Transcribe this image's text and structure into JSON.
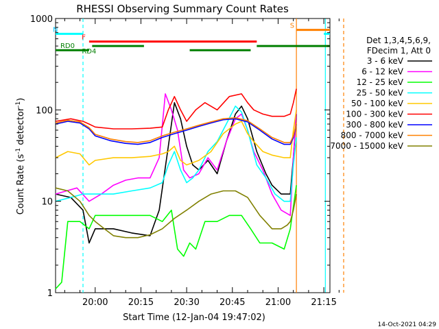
{
  "chart_data": {
    "type": "line",
    "title": "RHESSI Observing Summary Count Rates",
    "xlabel": "Start Time (12-Jan-04 19:47:02)",
    "ylabel_main": "Count Rate (s",
    "ylabel_sup1": "-1",
    "ylabel_mid": " detector",
    "ylabel_sup2": "-1",
    "ylabel_end": ")",
    "y_scale": "log",
    "ylim": [
      1,
      1000
    ],
    "y_ticks": [
      {
        "v": 1,
        "label": "1"
      },
      {
        "v": 10,
        "label": "10"
      },
      {
        "v": 100,
        "label": "100"
      },
      {
        "v": 1000,
        "label": "1000"
      }
    ],
    "xlim_min": [
      -13,
      72
    ],
    "x_ticks": [
      {
        "m": 0,
        "label": "20:00"
      },
      {
        "m": 15,
        "label": "20:15"
      },
      {
        "m": 30,
        "label": "20:30"
      },
      {
        "m": 45,
        "label": "20:45"
      },
      {
        "m": 60,
        "label": "21:00"
      },
      {
        "m": 75,
        "label": "21:15"
      }
    ],
    "legend_header": [
      "Det 1,3,4,5,6,9,",
      "FDecim 1, Att 0"
    ],
    "series": [
      {
        "name": "3 - 6 keV",
        "color": "#000000",
        "points": [
          [
            -13,
            12
          ],
          [
            -8,
            11
          ],
          [
            -4,
            8
          ],
          [
            -2,
            3.5
          ],
          [
            0,
            5
          ],
          [
            6,
            5
          ],
          [
            12,
            4.5
          ],
          [
            18,
            4.2
          ],
          [
            21,
            8
          ],
          [
            24,
            40
          ],
          [
            26,
            120
          ],
          [
            28,
            80
          ],
          [
            30,
            40
          ],
          [
            32,
            25
          ],
          [
            34,
            22
          ],
          [
            37,
            28
          ],
          [
            40,
            20
          ],
          [
            43,
            45
          ],
          [
            46,
            90
          ],
          [
            48,
            110
          ],
          [
            50,
            80
          ],
          [
            53,
            35
          ],
          [
            56,
            20
          ],
          [
            58,
            15
          ],
          [
            61,
            12
          ],
          [
            64,
            12
          ],
          [
            65,
            30
          ],
          [
            66,
            90
          ]
        ]
      },
      {
        "name": "6 - 12 keV",
        "color": "#ff00ff",
        "points": [
          [
            -13,
            12
          ],
          [
            -6,
            14
          ],
          [
            -2,
            10
          ],
          [
            2,
            12
          ],
          [
            6,
            15
          ],
          [
            10,
            17
          ],
          [
            14,
            18
          ],
          [
            18,
            18
          ],
          [
            21,
            30
          ],
          [
            23,
            150
          ],
          [
            25,
            100
          ],
          [
            27,
            60
          ],
          [
            29,
            22
          ],
          [
            31,
            18
          ],
          [
            34,
            20
          ],
          [
            37,
            30
          ],
          [
            40,
            22
          ],
          [
            43,
            45
          ],
          [
            46,
            80
          ],
          [
            48,
            90
          ],
          [
            50,
            60
          ],
          [
            52,
            35
          ],
          [
            55,
            22
          ],
          [
            58,
            12
          ],
          [
            61,
            8
          ],
          [
            64,
            7
          ],
          [
            65,
            30
          ],
          [
            66,
            100
          ]
        ]
      },
      {
        "name": "12 - 25 keV",
        "color": "#00ff00",
        "points": [
          [
            -13,
            1.1
          ],
          [
            -11,
            1.3
          ],
          [
            -9,
            6
          ],
          [
            -5,
            6
          ],
          [
            -2,
            5
          ],
          [
            0,
            7
          ],
          [
            6,
            7
          ],
          [
            12,
            7
          ],
          [
            18,
            7
          ],
          [
            22,
            6
          ],
          [
            25,
            8
          ],
          [
            27,
            3
          ],
          [
            29,
            2.5
          ],
          [
            31,
            3.5
          ],
          [
            33,
            3
          ],
          [
            36,
            6
          ],
          [
            40,
            6
          ],
          [
            44,
            7
          ],
          [
            48,
            7
          ],
          [
            51,
            5
          ],
          [
            54,
            3.5
          ],
          [
            58,
            3.5
          ],
          [
            62,
            3
          ],
          [
            64,
            5
          ],
          [
            66,
            15
          ]
        ]
      },
      {
        "name": "25 - 50 keV",
        "color": "#00ffff",
        "points": [
          [
            -13,
            10
          ],
          [
            -8,
            11
          ],
          [
            -4,
            12
          ],
          [
            0,
            12
          ],
          [
            6,
            12
          ],
          [
            12,
            13
          ],
          [
            18,
            14
          ],
          [
            22,
            16
          ],
          [
            24,
            25
          ],
          [
            26,
            35
          ],
          [
            28,
            22
          ],
          [
            30,
            16
          ],
          [
            32,
            18
          ],
          [
            34,
            22
          ],
          [
            37,
            35
          ],
          [
            40,
            45
          ],
          [
            43,
            70
          ],
          [
            46,
            110
          ],
          [
            48,
            95
          ],
          [
            50,
            60
          ],
          [
            53,
            25
          ],
          [
            56,
            18
          ],
          [
            59,
            12
          ],
          [
            62,
            10
          ],
          [
            64,
            10
          ],
          [
            65,
            25
          ],
          [
            66,
            50
          ]
        ]
      },
      {
        "name": "50 - 100 keV",
        "color": "#ffc800",
        "points": [
          [
            -13,
            30
          ],
          [
            -9,
            35
          ],
          [
            -5,
            33
          ],
          [
            -2,
            25
          ],
          [
            0,
            28
          ],
          [
            6,
            30
          ],
          [
            12,
            30
          ],
          [
            18,
            31
          ],
          [
            22,
            33
          ],
          [
            24,
            35
          ],
          [
            26,
            40
          ],
          [
            28,
            28
          ],
          [
            30,
            25
          ],
          [
            34,
            28
          ],
          [
            38,
            35
          ],
          [
            42,
            55
          ],
          [
            46,
            70
          ],
          [
            48,
            75
          ],
          [
            50,
            55
          ],
          [
            52,
            45
          ],
          [
            55,
            35
          ],
          [
            58,
            32
          ],
          [
            62,
            30
          ],
          [
            64,
            30
          ],
          [
            65,
            60
          ],
          [
            66,
            100
          ]
        ]
      },
      {
        "name": "100 - 300 keV",
        "color": "#ff0000",
        "points": [
          [
            -13,
            75
          ],
          [
            -8,
            80
          ],
          [
            -4,
            75
          ],
          [
            -2,
            70
          ],
          [
            0,
            65
          ],
          [
            6,
            62
          ],
          [
            12,
            62
          ],
          [
            18,
            63
          ],
          [
            22,
            65
          ],
          [
            24,
            100
          ],
          [
            26,
            140
          ],
          [
            28,
            100
          ],
          [
            30,
            75
          ],
          [
            33,
            100
          ],
          [
            36,
            120
          ],
          [
            40,
            100
          ],
          [
            44,
            140
          ],
          [
            48,
            150
          ],
          [
            50,
            120
          ],
          [
            52,
            100
          ],
          [
            55,
            90
          ],
          [
            58,
            85
          ],
          [
            62,
            85
          ],
          [
            64,
            90
          ],
          [
            65,
            120
          ],
          [
            66,
            170
          ]
        ]
      },
      {
        "name": "300 - 800 keV",
        "color": "#0000ff",
        "points": [
          [
            -13,
            70
          ],
          [
            -9,
            75
          ],
          [
            -5,
            72
          ],
          [
            -2,
            62
          ],
          [
            0,
            52
          ],
          [
            5,
            46
          ],
          [
            10,
            43
          ],
          [
            14,
            42
          ],
          [
            18,
            44
          ],
          [
            22,
            50
          ],
          [
            26,
            55
          ],
          [
            30,
            60
          ],
          [
            34,
            66
          ],
          [
            38,
            72
          ],
          [
            42,
            78
          ],
          [
            46,
            80
          ],
          [
            50,
            74
          ],
          [
            54,
            60
          ],
          [
            58,
            48
          ],
          [
            62,
            42
          ],
          [
            64,
            42
          ],
          [
            65,
            50
          ],
          [
            66,
            70
          ]
        ]
      },
      {
        "name": "800 - 7000 keV",
        "color": "#ff8000",
        "points": [
          [
            -13,
            72
          ],
          [
            -9,
            77
          ],
          [
            -5,
            74
          ],
          [
            -2,
            64
          ],
          [
            0,
            54
          ],
          [
            5,
            48
          ],
          [
            10,
            45
          ],
          [
            14,
            44
          ],
          [
            18,
            46
          ],
          [
            22,
            52
          ],
          [
            26,
            57
          ],
          [
            30,
            62
          ],
          [
            34,
            68
          ],
          [
            38,
            74
          ],
          [
            42,
            80
          ],
          [
            46,
            82
          ],
          [
            50,
            76
          ],
          [
            54,
            62
          ],
          [
            58,
            50
          ],
          [
            62,
            44
          ],
          [
            64,
            44
          ],
          [
            65,
            52
          ],
          [
            66,
            72
          ]
        ]
      },
      {
        "name": "7000 - 15000 keV",
        "color": "#808000",
        "points": [
          [
            -13,
            14
          ],
          [
            -9,
            13
          ],
          [
            -5,
            10
          ],
          [
            -2,
            7
          ],
          [
            0,
            6
          ],
          [
            3,
            5
          ],
          [
            6,
            4.2
          ],
          [
            10,
            4
          ],
          [
            14,
            4
          ],
          [
            18,
            4.3
          ],
          [
            22,
            5
          ],
          [
            26,
            6.5
          ],
          [
            30,
            8
          ],
          [
            34,
            10
          ],
          [
            38,
            12
          ],
          [
            42,
            13
          ],
          [
            46,
            13
          ],
          [
            50,
            11
          ],
          [
            54,
            7
          ],
          [
            58,
            5
          ],
          [
            61,
            5
          ],
          [
            63,
            5.5
          ],
          [
            64,
            6
          ],
          [
            65,
            8
          ],
          [
            66,
            12
          ]
        ]
      }
    ],
    "state_bars": [
      {
        "label": "N",
        "color": "#00ffff",
        "label_color": "#00c8ff",
        "segments": [
          [
            -13,
            -4
          ],
          [
            75,
            82
          ]
        ],
        "level": 680
      },
      {
        "label": "F",
        "color": "#ff0000",
        "label_color": "#ff0000",
        "segments": [
          [
            -2,
            53
          ]
        ],
        "level": 560
      },
      {
        "label": "RD0",
        "color": "#007f00",
        "label_color": "#007f00",
        "segments": [
          [
            -13,
            -2
          ],
          [
            31,
            51
          ]
        ],
        "level": 450
      },
      {
        "label": "RD4",
        "color": "#007f00",
        "label_color": "#007f00",
        "segments": [
          [
            -1,
            16
          ],
          [
            53,
            82
          ]
        ],
        "level": 500
      },
      {
        "label": "S",
        "color": "#ff8000",
        "label_color": "#ff8000",
        "segments": [
          [
            66,
            82
          ]
        ],
        "level": 750
      }
    ],
    "vlines": [
      {
        "m": -4,
        "color": "#00ffff",
        "dash": true
      },
      {
        "m": 66,
        "color": "#ff8000",
        "dash": false
      },
      {
        "m": 75.5,
        "color": "#00ffff",
        "dash": false
      },
      {
        "m": 81.5,
        "color": "#ff8000",
        "dash": true
      }
    ],
    "grid": false,
    "legend_placement": "right",
    "timestamp": "14-Oct-2021 04:29"
  }
}
